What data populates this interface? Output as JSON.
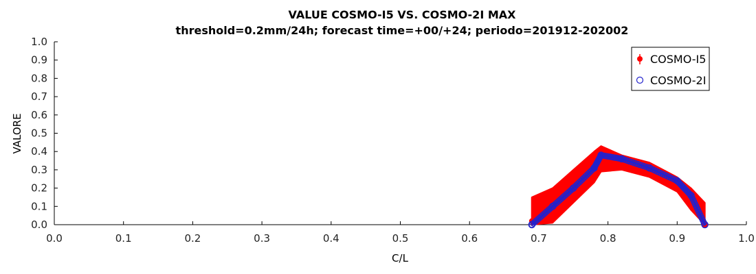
{
  "chart_data": {
    "type": "scatter",
    "title": "VALUE COSMO-I5 VS. COSMO-2I MAX",
    "subtitle": "threshold=0.2mm/24h; forecast time=+00/+24; periodo=201912-202002",
    "xlabel": "C/L",
    "ylabel": "VALORE",
    "xlim": [
      0.0,
      1.0
    ],
    "ylim": [
      0.0,
      1.0
    ],
    "xticks": [
      "0.0",
      "0.1",
      "0.2",
      "0.3",
      "0.4",
      "0.5",
      "0.6",
      "0.7",
      "0.8",
      "0.9",
      "1.0"
    ],
    "yticks": [
      "0.0",
      "0.1",
      "0.2",
      "0.3",
      "0.4",
      "0.5",
      "0.6",
      "0.7",
      "0.8",
      "0.9",
      "1.0"
    ],
    "grid": false,
    "legend_position": "top-right",
    "series": [
      {
        "name": "COSMO-I5",
        "color": "#ff0000",
        "marker": "filled-circle-with-errorbar",
        "x": [
          0.69,
          0.72,
          0.75,
          0.78,
          0.79,
          0.82,
          0.86,
          0.9,
          0.92,
          0.94
        ],
        "y": [
          0.02,
          0.11,
          0.21,
          0.32,
          0.36,
          0.34,
          0.3,
          0.22,
          0.14,
          0.0
        ],
        "err_low": [
          0.0,
          0.01,
          0.12,
          0.23,
          0.29,
          0.3,
          0.26,
          0.18,
          0.08,
          0.0
        ],
        "err_high": [
          0.15,
          0.2,
          0.3,
          0.4,
          0.43,
          0.38,
          0.34,
          0.26,
          0.2,
          0.12
        ]
      },
      {
        "name": "COSMO-2I",
        "color": "#2222cc",
        "marker": "open-circle",
        "x": [
          0.69,
          0.72,
          0.75,
          0.78,
          0.79,
          0.82,
          0.86,
          0.9,
          0.92,
          0.94
        ],
        "y": [
          0.0,
          0.1,
          0.2,
          0.31,
          0.38,
          0.36,
          0.31,
          0.24,
          0.16,
          0.0
        ]
      }
    ]
  }
}
